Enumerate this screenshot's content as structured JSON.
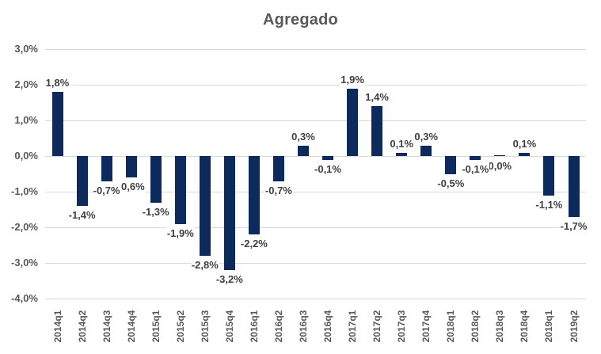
{
  "chart_data": {
    "type": "bar",
    "title": "Agregado",
    "categories": [
      "2014q1",
      "2014q2",
      "2014q3",
      "2014q4",
      "2015q1",
      "2015q2",
      "2015q3",
      "2015q4",
      "2016q1",
      "2016q2",
      "2016q3",
      "2016q4",
      "2017q1",
      "2017q2",
      "2017q3",
      "2017q4",
      "2018q1",
      "2018q2",
      "2018q3",
      "2018q4",
      "2019q1",
      "2019q2"
    ],
    "values": [
      1.8,
      -1.4,
      -0.7,
      -0.6,
      -1.3,
      -1.9,
      -2.8,
      -3.2,
      -2.2,
      -0.7,
      0.3,
      -0.1,
      1.9,
      1.4,
      0.1,
      0.3,
      -0.5,
      -0.1,
      0.0,
      0.1,
      -1.1,
      -1.7
    ],
    "labels": [
      "1,8%",
      "-1,4%",
      "-0,7%",
      "-0,6%",
      "-1,3%",
      "-1,9%",
      "-2,8%",
      "-3,2%",
      "-2,2%",
      "-0,7%",
      "0,3%",
      "-0,1%",
      "1,9%",
      "1,4%",
      "0,1%",
      "0,3%",
      "-0,5%",
      "-0,1%",
      "0,0%",
      "0,1%",
      "-1,1%",
      "-1,7%"
    ],
    "y_ticks": [
      {
        "label": "3,0%",
        "value": 3
      },
      {
        "label": "2,0%",
        "value": 2
      },
      {
        "label": "1,0%",
        "value": 1
      },
      {
        "label": "0,0%",
        "value": 0
      },
      {
        "label": "-1,0%",
        "value": -1
      },
      {
        "label": "-2,0%",
        "value": -2
      },
      {
        "label": "-3,0%",
        "value": -3
      },
      {
        "label": "-4,0%",
        "value": -4
      }
    ],
    "ylim": [
      -4,
      3
    ],
    "xlabel": "",
    "ylabel": "",
    "grid": true,
    "legend": "none",
    "colors": {
      "bar": "#0d2a5c",
      "data_label": "#404040",
      "axis_label": "#595959",
      "gridline": "#d9d9d9",
      "title": "#595959",
      "background": "#ffffff"
    }
  }
}
